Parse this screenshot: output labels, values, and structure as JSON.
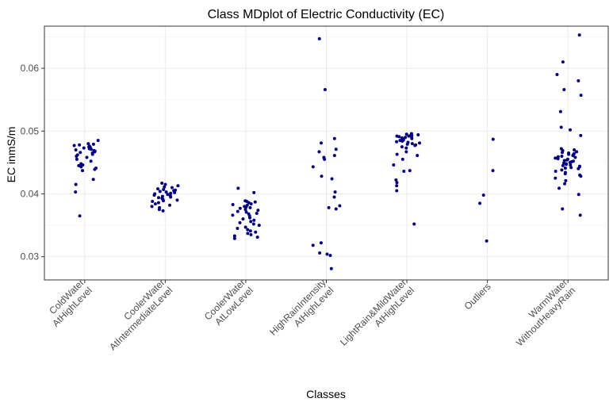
{
  "chart_data": {
    "type": "scatter",
    "title": "Class MDplot of Electric Conductivity (EC)",
    "xlabel": "Classes",
    "ylabel": "EC inmS/m",
    "ylim": [
      0.0263,
      0.0667
    ],
    "yticks": [
      0.03,
      0.04,
      0.05,
      0.06
    ],
    "ytick_labels": [
      "0.03",
      "0.04",
      "0.05",
      "0.06"
    ],
    "grid": true,
    "point_color": "#000080",
    "categories": [
      [
        "ColdWater",
        "AtHighLevel"
      ],
      [
        "CoolerWater",
        "AtIntermediateLevel"
      ],
      [
        "CoolerWater",
        "AtLowLevel"
      ],
      [
        "HighRainIntensity",
        "AtHighLevel"
      ],
      [
        "LightRain&MildWater",
        "AtHighLevel"
      ],
      [
        "Outliers"
      ],
      [
        "WarmWater",
        "WithoutHeavyRain"
      ]
    ],
    "series": [
      {
        "values": [
          0.0475,
          0.0478,
          0.048,
          0.0485,
          0.0476,
          0.0472,
          0.047,
          0.0468,
          0.0474,
          0.0479,
          0.0471,
          0.0466,
          0.0463,
          0.046,
          0.0458,
          0.0462,
          0.0455,
          0.0465,
          0.0467,
          0.0469,
          0.0477,
          0.0473,
          0.0452,
          0.0448,
          0.0445,
          0.0443,
          0.0441,
          0.0439,
          0.0437,
          0.0446,
          0.0423,
          0.0415,
          0.0403,
          0.0365
        ]
      },
      {
        "values": [
          0.0417,
          0.0415,
          0.0413,
          0.0411,
          0.041,
          0.0408,
          0.0407,
          0.0406,
          0.0405,
          0.0404,
          0.0403,
          0.0402,
          0.0401,
          0.04,
          0.0399,
          0.0398,
          0.0397,
          0.0396,
          0.0395,
          0.0394,
          0.0393,
          0.0392,
          0.0391,
          0.039,
          0.0389,
          0.0388,
          0.0386,
          0.0384,
          0.0382,
          0.038,
          0.0378,
          0.0375,
          0.0373
        ]
      },
      {
        "values": [
          0.0409,
          0.0402,
          0.0389,
          0.0388,
          0.0387,
          0.0386,
          0.0384,
          0.0383,
          0.0382,
          0.038,
          0.0379,
          0.0378,
          0.0377,
          0.0375,
          0.0374,
          0.0372,
          0.0371,
          0.0369,
          0.0368,
          0.0366,
          0.0365,
          0.0362,
          0.036,
          0.0358,
          0.0356,
          0.0354,
          0.0352,
          0.035,
          0.0347,
          0.0345,
          0.0343,
          0.0341,
          0.0339,
          0.0337,
          0.0335,
          0.0333,
          0.0331,
          0.0329
        ]
      },
      {
        "values": [
          0.0647,
          0.0566,
          0.0488,
          0.0481,
          0.0471,
          0.0467,
          0.0461,
          0.0458,
          0.0455,
          0.0443,
          0.0428,
          0.0424,
          0.0403,
          0.0395,
          0.0381,
          0.0378,
          0.0376,
          0.0322,
          0.0318,
          0.0306,
          0.0304,
          0.0302,
          0.0281
        ]
      },
      {
        "values": [
          0.0496,
          0.0495,
          0.0494,
          0.0494,
          0.0493,
          0.0492,
          0.0492,
          0.0491,
          0.049,
          0.049,
          0.0489,
          0.0488,
          0.0487,
          0.0486,
          0.0485,
          0.0484,
          0.0483,
          0.0482,
          0.0481,
          0.048,
          0.0479,
          0.0478,
          0.0477,
          0.0475,
          0.0473,
          0.0467,
          0.0463,
          0.0461,
          0.0455,
          0.0446,
          0.0437,
          0.0436,
          0.0422,
          0.0418,
          0.0413,
          0.0405,
          0.0352
        ]
      },
      {
        "values": [
          0.0487,
          0.0437,
          0.0398,
          0.0385,
          0.0325
        ]
      },
      {
        "values": [
          0.0653,
          0.061,
          0.059,
          0.058,
          0.0566,
          0.0557,
          0.0531,
          0.0506,
          0.0502,
          0.0493,
          0.0472,
          0.047,
          0.0469,
          0.0467,
          0.0466,
          0.0465,
          0.0464,
          0.0463,
          0.0462,
          0.0461,
          0.046,
          0.0459,
          0.0458,
          0.0457,
          0.0456,
          0.0455,
          0.0454,
          0.0453,
          0.0452,
          0.0451,
          0.045,
          0.0449,
          0.0448,
          0.0447,
          0.0446,
          0.0445,
          0.0444,
          0.0443,
          0.0442,
          0.0441,
          0.044,
          0.0438,
          0.0436,
          0.0434,
          0.0432,
          0.043,
          0.0428,
          0.0425,
          0.0421,
          0.0416,
          0.0409,
          0.0399,
          0.0376,
          0.0366
        ]
      }
    ]
  }
}
